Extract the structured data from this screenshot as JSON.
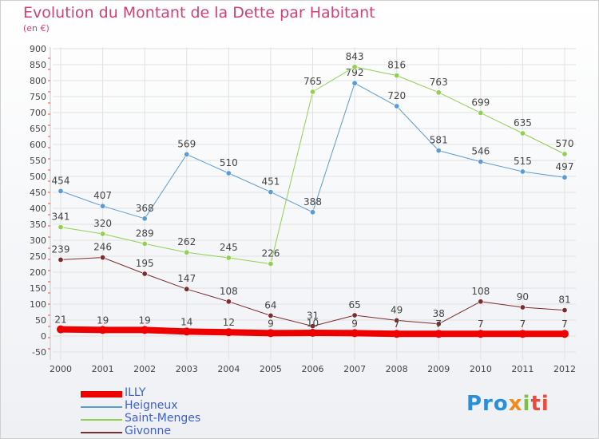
{
  "title": "Evolution du Montant de la Dette par Habitant",
  "subtitle": "(en €)",
  "brand": [
    "Pro",
    "x",
    "i",
    "ti"
  ],
  "chart_data": {
    "type": "line",
    "x": [
      "2000",
      "2001",
      "2002",
      "2003",
      "2004",
      "2005",
      "2006",
      "2007",
      "2008",
      "2009",
      "2010",
      "2011",
      "2012"
    ],
    "ylim": [
      -50,
      900
    ],
    "y_ticks": [
      "-50",
      "0",
      "50",
      "100",
      "150",
      "200",
      "250",
      "300",
      "350",
      "400",
      "450",
      "500",
      "550",
      "600",
      "650",
      "700",
      "750",
      "800",
      "850",
      "900"
    ],
    "grid": true,
    "legend_position": "bottom-left",
    "series": [
      {
        "name": "ILLY",
        "color": "#ee0000",
        "width": 8,
        "values": [
          21,
          19,
          19,
          14,
          12,
          9,
          10,
          9,
          7,
          7,
          7,
          7,
          7
        ],
        "labels": [
          "21",
          "19",
          "19",
          "14",
          "12",
          "9",
          "10",
          "9",
          "7",
          "7",
          "7",
          "7",
          "7"
        ]
      },
      {
        "name": "Heigneux",
        "color": "#5b9bd5",
        "width": 1,
        "values": [
          454,
          407,
          368,
          569,
          510,
          451,
          388,
          792,
          720,
          581,
          546,
          515,
          497
        ],
        "labels": [
          "454",
          "407",
          "368",
          "569",
          "510",
          "451",
          "388",
          "792",
          "720",
          "581",
          "546",
          "515",
          "497"
        ]
      },
      {
        "name": "Saint-Menges",
        "color": "#92d050",
        "width": 1,
        "values": [
          341,
          320,
          289,
          262,
          245,
          226,
          765,
          843,
          816,
          763,
          699,
          635,
          570
        ],
        "labels": [
          "341",
          "320",
          "289",
          "262",
          "245",
          "226",
          "765",
          "843",
          "816",
          "763",
          "699",
          "635",
          "570"
        ]
      },
      {
        "name": "Givonne",
        "color": "#7b2c2c",
        "width": 1,
        "values": [
          239,
          246,
          195,
          147,
          108,
          64,
          31,
          65,
          49,
          38,
          108,
          90,
          81
        ],
        "labels": [
          "239",
          "246",
          "195",
          "147",
          "108",
          "64",
          "31",
          "65",
          "49",
          "38",
          "108",
          "90",
          "81"
        ]
      }
    ]
  }
}
